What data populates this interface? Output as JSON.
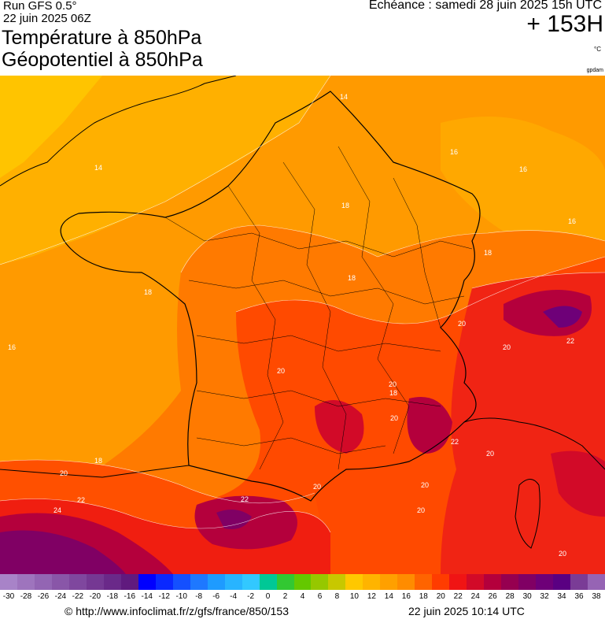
{
  "header": {
    "run": "Run GFS 0.5°",
    "run_date": "22 juin 2025 06Z",
    "title_line1": "Température à 850hPa",
    "title_line2": "Géopotentiel à 850hPa",
    "echeance": "Echéance : samedi 28 juin 2025 15h UTC",
    "offset": "+ 153H",
    "unit": "°C",
    "gpdam": "gpdam"
  },
  "map": {
    "contour_labels": [
      "14",
      "14",
      "16",
      "16",
      "16",
      "16",
      "18",
      "18",
      "18",
      "18",
      "18",
      "20",
      "20",
      "20",
      "20",
      "20",
      "20",
      "20",
      "20",
      "20",
      "20",
      "22",
      "22",
      "22",
      "22",
      "24",
      "18",
      "20"
    ]
  },
  "colorbar": {
    "ticks": [
      "-30",
      "-28",
      "-26",
      "-24",
      "-22",
      "-20",
      "-18",
      "-16",
      "-14",
      "-12",
      "-10",
      "-8",
      "-6",
      "-4",
      "-2",
      "0",
      "2",
      "4",
      "6",
      "8",
      "10",
      "12",
      "14",
      "16",
      "18",
      "20",
      "22",
      "24",
      "26",
      "28",
      "30",
      "32",
      "34",
      "36",
      "38"
    ],
    "colors": [
      "#a883c8",
      "#9e74bd",
      "#9365b3",
      "#8956a8",
      "#7f479e",
      "#753893",
      "#6a2989",
      "#601a7e",
      "#0000ff",
      "#0a28ff",
      "#1450ff",
      "#1e78ff",
      "#1e9bff",
      "#28b4ff",
      "#32c8ff",
      "#00c896",
      "#32c832",
      "#64c800",
      "#96c800",
      "#c8c800",
      "#ffc800",
      "#ffb400",
      "#ffa000",
      "#ff8c00",
      "#ff6400",
      "#ff3c00",
      "#f01414",
      "#d20a28",
      "#b4003c",
      "#960050",
      "#800064",
      "#6e0078",
      "#5a0082",
      "#7a3c96",
      "#9664b4"
    ]
  },
  "footer": {
    "url": "© http://www.infoclimat.fr/z/gfs/france/850/153",
    "timestamp": "22 juin 2025 10:14 UTC"
  }
}
